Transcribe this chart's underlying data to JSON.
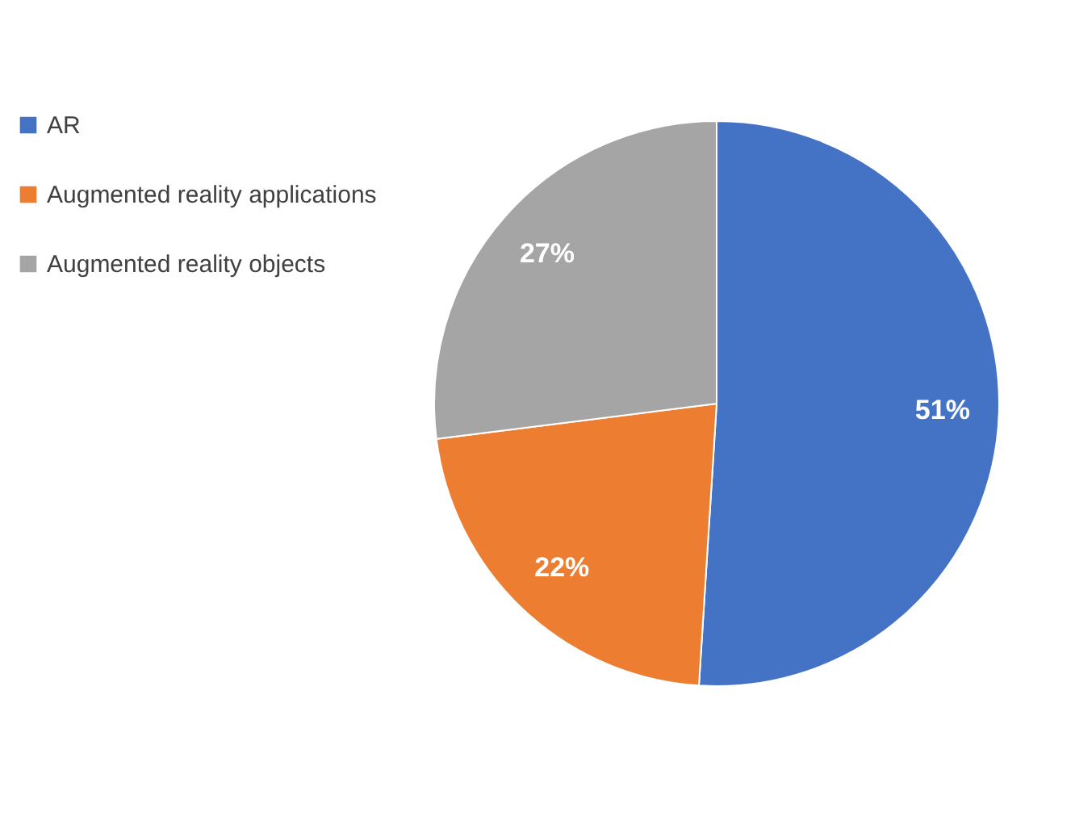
{
  "chart_data": {
    "type": "pie",
    "categories": [
      "AR",
      "Augmented reality applications",
      "Augmented reality objects"
    ],
    "values": [
      51,
      22,
      27
    ],
    "colors": [
      "#4472c4",
      "#ed7d31",
      "#a5a5a5"
    ],
    "value_labels": [
      "51%",
      "22%",
      "27%"
    ],
    "legend": "left"
  }
}
